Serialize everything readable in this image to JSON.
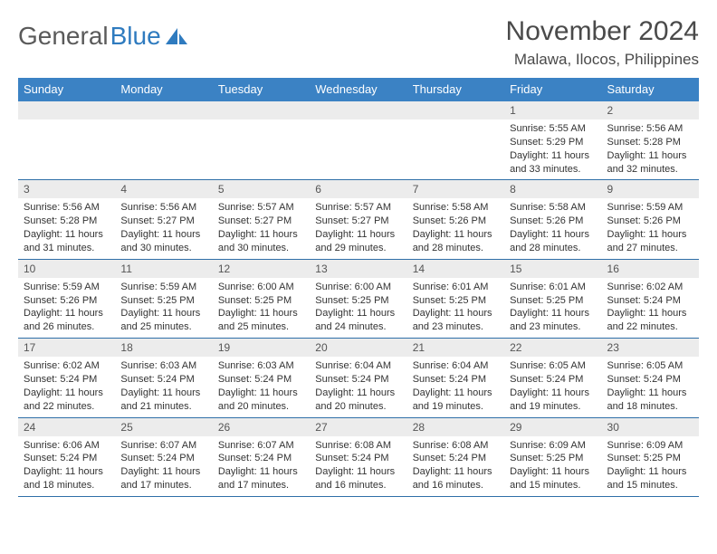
{
  "logo": {
    "text1": "General",
    "text2": "Blue"
  },
  "title": "November 2024",
  "location": "Malawa, Ilocos, Philippines",
  "colors": {
    "header_bg": "#3b82c4",
    "header_text": "#ffffff",
    "daynum_bg": "#ececec",
    "border": "#2f6fa8",
    "logo_gray": "#5a5a5a",
    "logo_blue": "#2f7bbf"
  },
  "days_of_week": [
    "Sunday",
    "Monday",
    "Tuesday",
    "Wednesday",
    "Thursday",
    "Friday",
    "Saturday"
  ],
  "weeks": [
    [
      null,
      null,
      null,
      null,
      null,
      {
        "n": "1",
        "sunrise": "5:55 AM",
        "sunset": "5:29 PM",
        "daylight": "11 hours and 33 minutes."
      },
      {
        "n": "2",
        "sunrise": "5:56 AM",
        "sunset": "5:28 PM",
        "daylight": "11 hours and 32 minutes."
      }
    ],
    [
      {
        "n": "3",
        "sunrise": "5:56 AM",
        "sunset": "5:28 PM",
        "daylight": "11 hours and 31 minutes."
      },
      {
        "n": "4",
        "sunrise": "5:56 AM",
        "sunset": "5:27 PM",
        "daylight": "11 hours and 30 minutes."
      },
      {
        "n": "5",
        "sunrise": "5:57 AM",
        "sunset": "5:27 PM",
        "daylight": "11 hours and 30 minutes."
      },
      {
        "n": "6",
        "sunrise": "5:57 AM",
        "sunset": "5:27 PM",
        "daylight": "11 hours and 29 minutes."
      },
      {
        "n": "7",
        "sunrise": "5:58 AM",
        "sunset": "5:26 PM",
        "daylight": "11 hours and 28 minutes."
      },
      {
        "n": "8",
        "sunrise": "5:58 AM",
        "sunset": "5:26 PM",
        "daylight": "11 hours and 28 minutes."
      },
      {
        "n": "9",
        "sunrise": "5:59 AM",
        "sunset": "5:26 PM",
        "daylight": "11 hours and 27 minutes."
      }
    ],
    [
      {
        "n": "10",
        "sunrise": "5:59 AM",
        "sunset": "5:26 PM",
        "daylight": "11 hours and 26 minutes."
      },
      {
        "n": "11",
        "sunrise": "5:59 AM",
        "sunset": "5:25 PM",
        "daylight": "11 hours and 25 minutes."
      },
      {
        "n": "12",
        "sunrise": "6:00 AM",
        "sunset": "5:25 PM",
        "daylight": "11 hours and 25 minutes."
      },
      {
        "n": "13",
        "sunrise": "6:00 AM",
        "sunset": "5:25 PM",
        "daylight": "11 hours and 24 minutes."
      },
      {
        "n": "14",
        "sunrise": "6:01 AM",
        "sunset": "5:25 PM",
        "daylight": "11 hours and 23 minutes."
      },
      {
        "n": "15",
        "sunrise": "6:01 AM",
        "sunset": "5:25 PM",
        "daylight": "11 hours and 23 minutes."
      },
      {
        "n": "16",
        "sunrise": "6:02 AM",
        "sunset": "5:24 PM",
        "daylight": "11 hours and 22 minutes."
      }
    ],
    [
      {
        "n": "17",
        "sunrise": "6:02 AM",
        "sunset": "5:24 PM",
        "daylight": "11 hours and 22 minutes."
      },
      {
        "n": "18",
        "sunrise": "6:03 AM",
        "sunset": "5:24 PM",
        "daylight": "11 hours and 21 minutes."
      },
      {
        "n": "19",
        "sunrise": "6:03 AM",
        "sunset": "5:24 PM",
        "daylight": "11 hours and 20 minutes."
      },
      {
        "n": "20",
        "sunrise": "6:04 AM",
        "sunset": "5:24 PM",
        "daylight": "11 hours and 20 minutes."
      },
      {
        "n": "21",
        "sunrise": "6:04 AM",
        "sunset": "5:24 PM",
        "daylight": "11 hours and 19 minutes."
      },
      {
        "n": "22",
        "sunrise": "6:05 AM",
        "sunset": "5:24 PM",
        "daylight": "11 hours and 19 minutes."
      },
      {
        "n": "23",
        "sunrise": "6:05 AM",
        "sunset": "5:24 PM",
        "daylight": "11 hours and 18 minutes."
      }
    ],
    [
      {
        "n": "24",
        "sunrise": "6:06 AM",
        "sunset": "5:24 PM",
        "daylight": "11 hours and 18 minutes."
      },
      {
        "n": "25",
        "sunrise": "6:07 AM",
        "sunset": "5:24 PM",
        "daylight": "11 hours and 17 minutes."
      },
      {
        "n": "26",
        "sunrise": "6:07 AM",
        "sunset": "5:24 PM",
        "daylight": "11 hours and 17 minutes."
      },
      {
        "n": "27",
        "sunrise": "6:08 AM",
        "sunset": "5:24 PM",
        "daylight": "11 hours and 16 minutes."
      },
      {
        "n": "28",
        "sunrise": "6:08 AM",
        "sunset": "5:24 PM",
        "daylight": "11 hours and 16 minutes."
      },
      {
        "n": "29",
        "sunrise": "6:09 AM",
        "sunset": "5:25 PM",
        "daylight": "11 hours and 15 minutes."
      },
      {
        "n": "30",
        "sunrise": "6:09 AM",
        "sunset": "5:25 PM",
        "daylight": "11 hours and 15 minutes."
      }
    ]
  ]
}
